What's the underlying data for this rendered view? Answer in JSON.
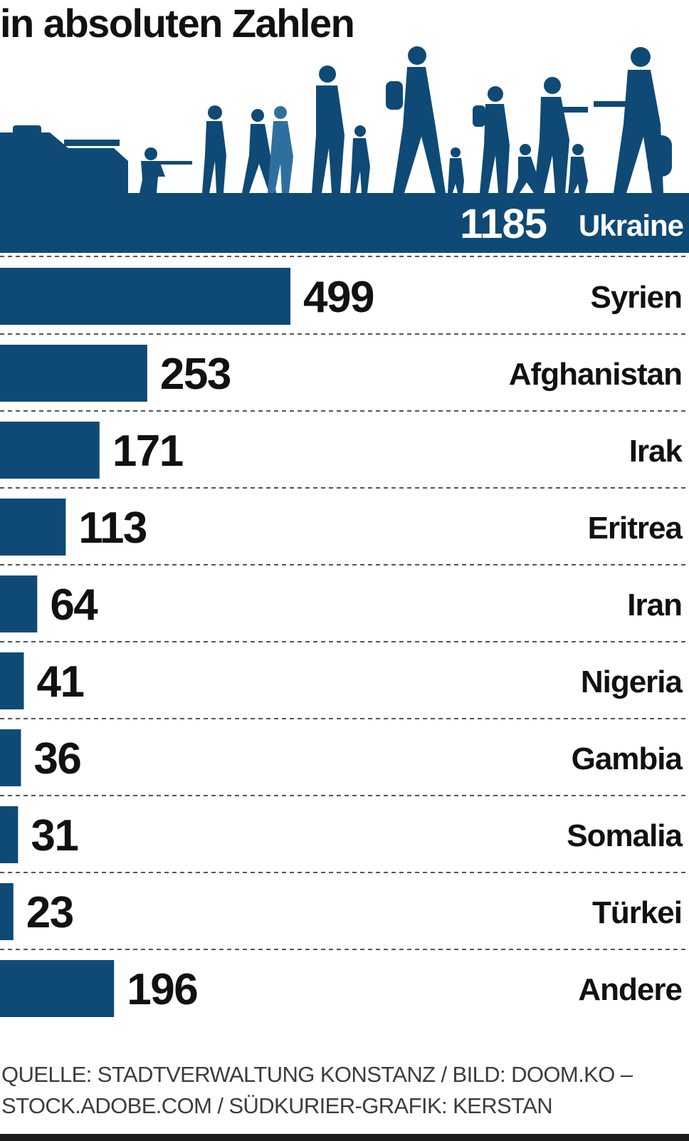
{
  "header": {
    "subtitle": "in absoluten Zahlen"
  },
  "colors": {
    "bar": "#0e4a75",
    "band": "#0e4a75",
    "text": "#111111",
    "source_text": "#3c3c3c",
    "divider": "#555555"
  },
  "hero": {
    "value": "1185",
    "label": "Ukraine",
    "illustration": "refugees-walking-silhouette-with-tank"
  },
  "chart_data": {
    "type": "bar",
    "orientation": "horizontal",
    "categories": [
      "Syrien",
      "Afghanistan",
      "Irak",
      "Eritrea",
      "Iran",
      "Nigeria",
      "Gambia",
      "Somalia",
      "Türkei",
      "Andere"
    ],
    "values": [
      499,
      253,
      171,
      113,
      64,
      41,
      36,
      31,
      23,
      196
    ],
    "highlight": {
      "category": "Ukraine",
      "value": 1185
    },
    "xlim": [
      0,
      1185
    ],
    "grid": false,
    "data_labels": true
  },
  "footer": {
    "source_line1": "QUELLE: STADTVERWALTUNG KONSTANZ / BILD: DOOM.KO –",
    "source_line2": "STOCK.ADOBE.COM  / SÜDKURIER-GRAFIK: KERSTAN"
  }
}
